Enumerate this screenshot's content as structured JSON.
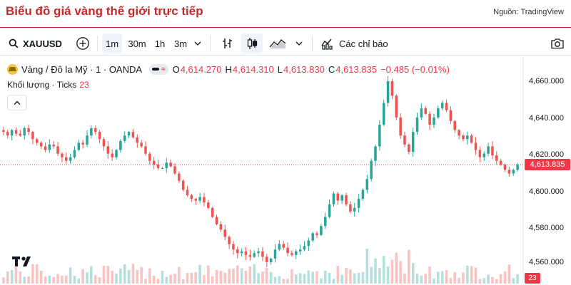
{
  "page": {
    "title": "Biểu đồ giá vàng thế giới trực tiếp",
    "source": "Nguồn: TradingView"
  },
  "toolbar": {
    "symbol": "XAUUSD",
    "intervals": [
      "1m",
      "30m",
      "1h",
      "3m"
    ],
    "active_interval": "1m",
    "indicators_label": "Các chỉ báo"
  },
  "legend": {
    "name": "Vàng / Đô la Mỹ · 1 · OANDA",
    "pill_text": "≈",
    "open_label": "O",
    "open": "4,614.270",
    "high_label": "H",
    "high": "4,614.310",
    "low_label": "L",
    "low": "4,613.830",
    "close_label": "C",
    "close": "4,613.835",
    "change": "−0.485 (−0.01%)",
    "volume_label": "Khối lượng · Ticks",
    "volume_value": "23"
  },
  "colors": {
    "up": "#26a69a",
    "down": "#ef5350",
    "accent": "#c62828",
    "price_badge": "#f23645"
  },
  "axis": {
    "ticks": [
      "4,660.000",
      "4,640.000",
      "4,620.000",
      "4,600.000",
      "4,580.000",
      "4,560.000"
    ],
    "current_price": "4,613.835",
    "volume_badge": "23"
  },
  "chart_data": {
    "type": "candlestick",
    "symbol": "XAUUSD",
    "ylim": [
      4553,
      4671
    ],
    "y_ticks": [
      4660,
      4640,
      4620,
      4600,
      4580,
      4560
    ],
    "last_price": 4613.835,
    "approx_closes": [
      4632,
      4630,
      4633,
      4631,
      4630,
      4634,
      4632,
      4628,
      4626,
      4624,
      4622,
      4625,
      4624,
      4620,
      4618,
      4616,
      4618,
      4622,
      4626,
      4625,
      4630,
      4634,
      4632,
      4628,
      4624,
      4620,
      4618,
      4622,
      4627,
      4630,
      4632,
      4629,
      4626,
      4624,
      4620,
      4616,
      4614,
      4612,
      4612,
      4615,
      4613,
      4609,
      4605,
      4600,
      4597,
      4595,
      4594,
      4596,
      4593,
      4590,
      4585,
      4581,
      4578,
      4574,
      4570,
      4567,
      4565,
      4566,
      4564,
      4563,
      4565,
      4566,
      4563,
      4560,
      4562,
      4567,
      4570,
      4568,
      4565,
      4564,
      4566,
      4567,
      4569,
      4572,
      4576,
      4575,
      4580,
      4585,
      4592,
      4598,
      4594,
      4597,
      4592,
      4588,
      4590,
      4595,
      4600,
      4606,
      4616,
      4624,
      4636,
      4648,
      4660,
      4652,
      4640,
      4630,
      4625,
      4621,
      4632,
      4640,
      4645,
      4642,
      4636,
      4640,
      4645,
      4648,
      4644,
      4638,
      4633,
      4630,
      4628,
      4630,
      4626,
      4622,
      4618,
      4620,
      4624,
      4619,
      4616,
      4614,
      4611,
      4609,
      4611,
      4614
    ]
  }
}
